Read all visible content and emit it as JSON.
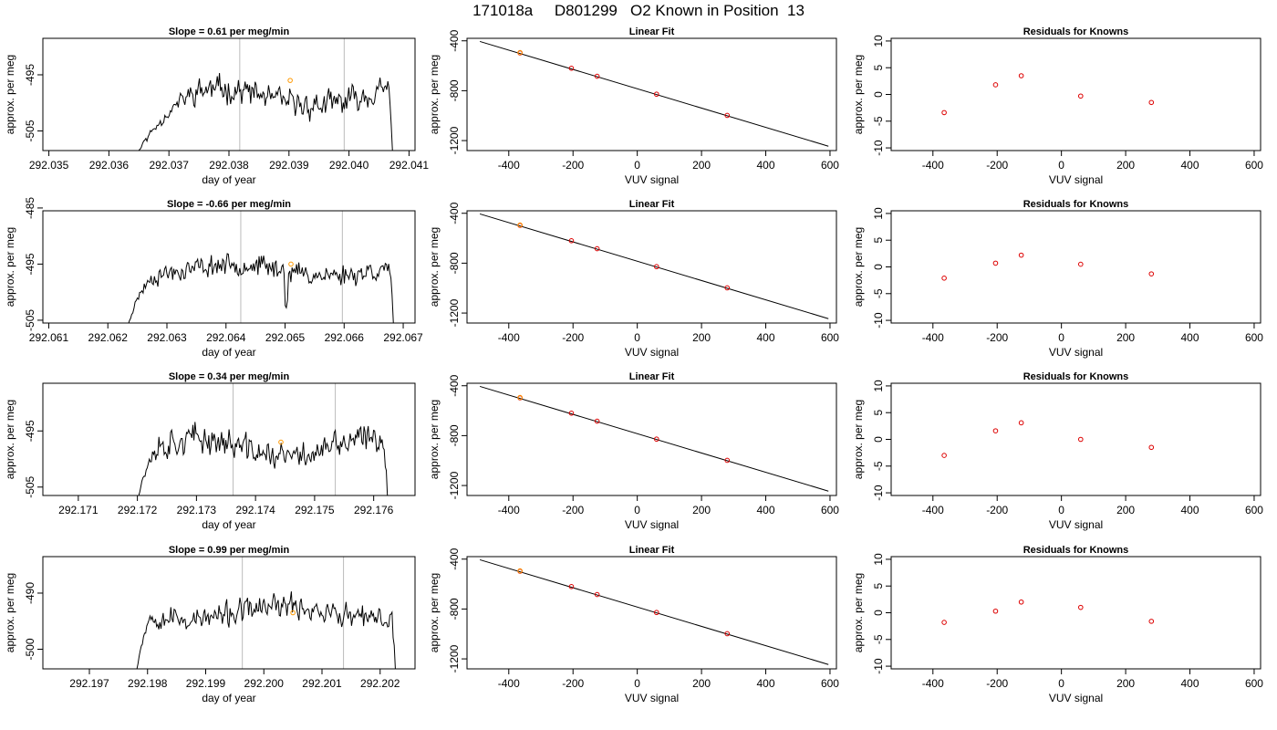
{
  "page_title": "171018a     D801299   O2 Known in Position  13",
  "colors": {
    "line": "#000000",
    "marker_red": "#dd0000",
    "marker_orange": "#ff9900",
    "vline": "#bbbbbb",
    "fit_line": "#000000"
  },
  "chart_data": [
    {
      "type": "line",
      "title": "Slope =  0.61  per meg/min",
      "xlabel": "day of year",
      "ylabel": "approx. per meg",
      "xlim": [
        292.0349,
        292.0411
      ],
      "ylim": [
        -508.5,
        -488.5
      ],
      "xticks": [
        292.035,
        292.036,
        292.037,
        292.038,
        292.039,
        292.04,
        292.041
      ],
      "xtick_labels": [
        "292.035",
        "292.036",
        "292.037",
        "292.038",
        "292.039",
        "292.040",
        "292.041"
      ],
      "yticks": [
        -495,
        -505
      ],
      "ytick_labels": [
        "-495",
        "-505"
      ],
      "vlines": [
        292.03818,
        292.03992
      ],
      "marker": {
        "x": 292.03902,
        "y": -496.0
      },
      "series": {
        "x_start": 292.0363,
        "x_end": 292.04074,
        "n": 240,
        "seed": 11,
        "base": -499,
        "amp": 1.5,
        "noise": 1.6,
        "rise_frac": 0.28,
        "start_y": -512,
        "end_y": -512
      }
    },
    {
      "type": "scatter",
      "title": "Linear Fit",
      "xlabel": "VUV signal",
      "ylabel": "approx. per meg",
      "xlim": [
        -530,
        620
      ],
      "ylim": [
        -1280,
        -380
      ],
      "xticks": [
        -400,
        -200,
        0,
        200,
        400,
        600
      ],
      "xtick_labels": [
        "-400",
        "-200",
        "0",
        "200",
        "400",
        "600"
      ],
      "yticks": [
        -400,
        -800,
        -1200
      ],
      "ytick_labels": [
        "-400",
        "-800",
        "-1200"
      ],
      "line": {
        "x": [
          -490,
          595
        ],
        "y": [
          -405,
          -1245
        ]
      },
      "points": [
        {
          "x": -365,
          "y": -497
        },
        {
          "x": -205,
          "y": -620
        },
        {
          "x": -125,
          "y": -684
        },
        {
          "x": 60,
          "y": -828
        },
        {
          "x": 280,
          "y": -998
        }
      ],
      "orange_points": [
        {
          "x": -365,
          "y": -494
        }
      ]
    },
    {
      "type": "scatter",
      "title": "Residuals for Knowns",
      "xlabel": "VUV signal",
      "ylabel": "approx. per meg",
      "xlim": [
        -530,
        620
      ],
      "ylim": [
        -10.5,
        10.5
      ],
      "xticks": [
        -400,
        -200,
        0,
        200,
        400,
        600
      ],
      "xtick_labels": [
        "-400",
        "-200",
        "0",
        "200",
        "400",
        "600"
      ],
      "yticks": [
        -10,
        -5,
        0,
        5,
        10
      ],
      "ytick_labels": [
        "-10",
        "-5",
        "0",
        "5",
        "10"
      ],
      "points": [
        {
          "x": -365,
          "y": -3.4
        },
        {
          "x": -205,
          "y": 1.8
        },
        {
          "x": -125,
          "y": 3.5
        },
        {
          "x": 60,
          "y": -0.3
        },
        {
          "x": 280,
          "y": -1.5
        }
      ]
    },
    {
      "type": "line",
      "title": "Slope =  -0.66  per meg/min",
      "xlabel": "day of year",
      "ylabel": "approx. per meg",
      "xlim": [
        292.0609,
        292.0672
      ],
      "ylim": [
        -505.5,
        -485.5
      ],
      "xticks": [
        292.061,
        292.062,
        292.063,
        292.064,
        292.065,
        292.066,
        292.067
      ],
      "xtick_labels": [
        "292.061",
        "292.062",
        "292.063",
        "292.064",
        "292.065",
        "292.066",
        "292.067"
      ],
      "yticks": [
        -485,
        -495,
        -505
      ],
      "ytick_labels": [
        "-485",
        "-495",
        "-505"
      ],
      "vlines": [
        292.06425,
        292.06597
      ],
      "marker": {
        "x": 292.0651,
        "y": -495.0
      },
      "series": {
        "x_start": 292.06225,
        "x_end": 292.06685,
        "n": 240,
        "seed": 23,
        "base": -496,
        "amp": 1.0,
        "noise": 1.3,
        "rise_frac": 0.14,
        "start_y": -509,
        "end_y": -509,
        "spike": {
          "x": 292.06503,
          "dy": -5
        }
      }
    },
    {
      "type": "scatter",
      "title": "Linear Fit",
      "xlabel": "VUV signal",
      "ylabel": "approx. per meg",
      "xlim": [
        -530,
        620
      ],
      "ylim": [
        -1280,
        -380
      ],
      "xticks": [
        -400,
        -200,
        0,
        200,
        400,
        600
      ],
      "xtick_labels": [
        "-400",
        "-200",
        "0",
        "200",
        "400",
        "600"
      ],
      "yticks": [
        -400,
        -800,
        -1200
      ],
      "ytick_labels": [
        "-400",
        "-800",
        "-1200"
      ],
      "line": {
        "x": [
          -490,
          595
        ],
        "y": [
          -405,
          -1245
        ]
      },
      "points": [
        {
          "x": -365,
          "y": -497
        },
        {
          "x": -205,
          "y": -620
        },
        {
          "x": -125,
          "y": -684
        },
        {
          "x": 60,
          "y": -828
        },
        {
          "x": 280,
          "y": -998
        }
      ],
      "orange_points": [
        {
          "x": -365,
          "y": -494
        }
      ]
    },
    {
      "type": "scatter",
      "title": "Residuals for Knowns",
      "xlabel": "VUV signal",
      "ylabel": "approx. per meg",
      "xlim": [
        -530,
        620
      ],
      "ylim": [
        -10.5,
        10.5
      ],
      "xticks": [
        -400,
        -200,
        0,
        200,
        400,
        600
      ],
      "xtick_labels": [
        "-400",
        "-200",
        "0",
        "200",
        "400",
        "600"
      ],
      "yticks": [
        -10,
        -5,
        0,
        5,
        10
      ],
      "ytick_labels": [
        "-10",
        "-5",
        "0",
        "5",
        "10"
      ],
      "points": [
        {
          "x": -365,
          "y": -2.1
        },
        {
          "x": -205,
          "y": 0.7
        },
        {
          "x": -125,
          "y": 2.2
        },
        {
          "x": 60,
          "y": 0.5
        },
        {
          "x": 280,
          "y": -1.3
        }
      ]
    },
    {
      "type": "line",
      "title": "Slope =  0.34  per meg/min",
      "xlabel": "day of year",
      "ylabel": "approx. per meg",
      "xlim": [
        292.1704,
        292.1767
      ],
      "ylim": [
        -506.5,
        -486.5
      ],
      "xticks": [
        292.171,
        292.172,
        292.173,
        292.174,
        292.175,
        292.176
      ],
      "xtick_labels": [
        "292.171",
        "292.172",
        "292.173",
        "292.174",
        "292.175",
        "292.176"
      ],
      "yticks": [
        -495,
        -505
      ],
      "ytick_labels": [
        "-495",
        "-505"
      ],
      "vlines": [
        292.17362,
        292.17535
      ],
      "marker": {
        "x": 292.17443,
        "y": -497.0
      },
      "series": {
        "x_start": 292.17195,
        "x_end": 292.17625,
        "n": 240,
        "seed": 37,
        "base": -498,
        "amp": 1.6,
        "noise": 1.8,
        "rise_frac": 0.1,
        "start_y": -510,
        "end_y": -510
      }
    },
    {
      "type": "scatter",
      "title": "Linear Fit",
      "xlabel": "VUV signal",
      "ylabel": "approx. per meg",
      "xlim": [
        -530,
        620
      ],
      "ylim": [
        -1280,
        -380
      ],
      "xticks": [
        -400,
        -200,
        0,
        200,
        400,
        600
      ],
      "xtick_labels": [
        "-400",
        "-200",
        "0",
        "200",
        "400",
        "600"
      ],
      "yticks": [
        -400,
        -800,
        -1200
      ],
      "ytick_labels": [
        "-400",
        "-800",
        "-1200"
      ],
      "line": {
        "x": [
          -490,
          595
        ],
        "y": [
          -405,
          -1245
        ]
      },
      "points": [
        {
          "x": -365,
          "y": -497
        },
        {
          "x": -205,
          "y": -620
        },
        {
          "x": -125,
          "y": -684
        },
        {
          "x": 60,
          "y": -828
        },
        {
          "x": 280,
          "y": -998
        }
      ],
      "orange_points": [
        {
          "x": -365,
          "y": -494
        }
      ]
    },
    {
      "type": "scatter",
      "title": "Residuals for Knowns",
      "xlabel": "VUV signal",
      "ylabel": "approx. per meg",
      "xlim": [
        -530,
        620
      ],
      "ylim": [
        -10.5,
        10.5
      ],
      "xticks": [
        -400,
        -200,
        0,
        200,
        400,
        600
      ],
      "xtick_labels": [
        "-400",
        "-200",
        "0",
        "200",
        "400",
        "600"
      ],
      "yticks": [
        -10,
        -5,
        0,
        5,
        10
      ],
      "ytick_labels": [
        "-10",
        "-5",
        "0",
        "5",
        "10"
      ],
      "points": [
        {
          "x": -365,
          "y": -3.0
        },
        {
          "x": -205,
          "y": 1.6
        },
        {
          "x": -125,
          "y": 3.1
        },
        {
          "x": 60,
          "y": 0.0
        },
        {
          "x": 280,
          "y": -1.5
        }
      ]
    },
    {
      "type": "line",
      "title": "Slope =  0.99  per meg/min",
      "xlabel": "day of year",
      "ylabel": "approx. per meg",
      "xlim": [
        292.1962,
        292.2026
      ],
      "ylim": [
        -503.5,
        -483.5
      ],
      "xticks": [
        292.197,
        292.198,
        292.199,
        292.2,
        292.201,
        292.202
      ],
      "xtick_labels": [
        "292.197",
        "292.198",
        "292.199",
        "292.200",
        "292.201",
        "292.202"
      ],
      "yticks": [
        -490,
        -500
      ],
      "ytick_labels": [
        "-490",
        "-500"
      ],
      "vlines": [
        292.19963,
        292.20137
      ],
      "marker": {
        "x": 292.2005,
        "y": -493.5
      },
      "series": {
        "x_start": 292.19778,
        "x_end": 292.20228,
        "n": 240,
        "seed": 53,
        "base": -493.5,
        "amp": 1.2,
        "noise": 1.5,
        "rise_frac": 0.08,
        "start_y": -506,
        "end_y": -507
      }
    },
    {
      "type": "scatter",
      "title": "Linear Fit",
      "xlabel": "VUV signal",
      "ylabel": "approx. per meg",
      "xlim": [
        -530,
        620
      ],
      "ylim": [
        -1280,
        -380
      ],
      "xticks": [
        -400,
        -200,
        0,
        200,
        400,
        600
      ],
      "xtick_labels": [
        "-400",
        "-200",
        "0",
        "200",
        "400",
        "600"
      ],
      "yticks": [
        -400,
        -800,
        -1200
      ],
      "ytick_labels": [
        "-400",
        "-800",
        "-1200"
      ],
      "line": {
        "x": [
          -490,
          595
        ],
        "y": [
          -405,
          -1245
        ]
      },
      "points": [
        {
          "x": -365,
          "y": -497
        },
        {
          "x": -205,
          "y": -620
        },
        {
          "x": -125,
          "y": -684
        },
        {
          "x": 60,
          "y": -828
        },
        {
          "x": 280,
          "y": -998
        }
      ],
      "orange_points": [
        {
          "x": -365,
          "y": -494
        }
      ]
    },
    {
      "type": "scatter",
      "title": "Residuals for Knowns",
      "xlabel": "VUV signal",
      "ylabel": "approx. per meg",
      "xlim": [
        -530,
        620
      ],
      "ylim": [
        -10.5,
        10.5
      ],
      "xticks": [
        -400,
        -200,
        0,
        200,
        400,
        600
      ],
      "xtick_labels": [
        "-400",
        "-200",
        "0",
        "200",
        "400",
        "600"
      ],
      "yticks": [
        -10,
        -5,
        0,
        5,
        10
      ],
      "ytick_labels": [
        "-10",
        "-5",
        "0",
        "5",
        "10"
      ],
      "points": [
        {
          "x": -365,
          "y": -1.8
        },
        {
          "x": -205,
          "y": 0.3
        },
        {
          "x": -125,
          "y": 2.0
        },
        {
          "x": 60,
          "y": 1.0
        },
        {
          "x": 280,
          "y": -1.6
        }
      ]
    }
  ]
}
